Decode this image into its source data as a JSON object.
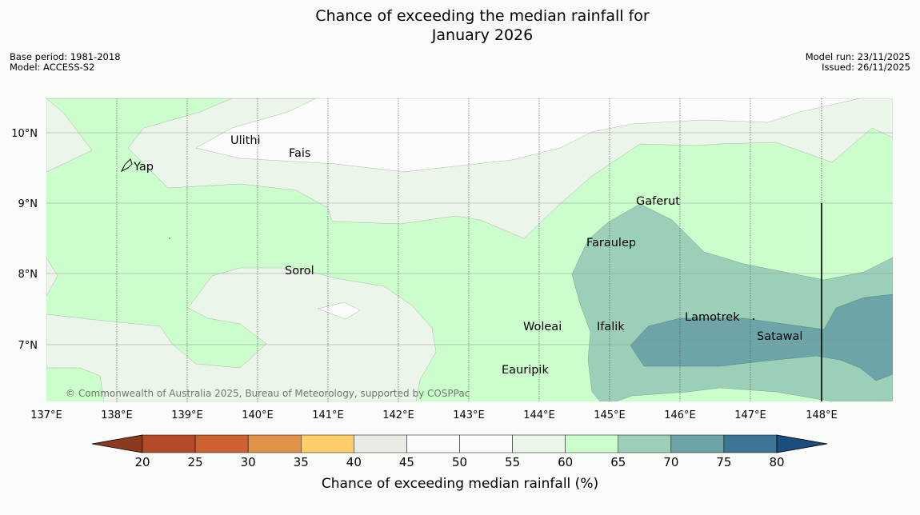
{
  "title_line1": "Chance of exceeding the median rainfall for",
  "title_line2": "January 2026",
  "base_period": "Base period: 1981-2018",
  "model": "Model: ACCESS-S2",
  "model_run": "Model run: 23/11/2025",
  "issued": "Issued: 26/11/2025",
  "copyright": "© Commonwealth of Australia 2025, Bureau of Meteorology, supported by COSPPac",
  "lon_labels": [
    "137°E",
    "138°E",
    "139°E",
    "140°E",
    "141°E",
    "142°E",
    "143°E",
    "144°E",
    "145°E",
    "146°E",
    "147°E",
    "148°E"
  ],
  "lat_labels": [
    "10°N",
    "9°N",
    "8°N",
    "7°N"
  ],
  "places": {
    "yap": "Yap",
    "ulithi": "Ulithi",
    "fais": "Fais",
    "gaferut": "Gaferut",
    "faraulep": "Faraulep",
    "sorol": "Sorol",
    "woleai": "Woleai",
    "ifalik": "Ifalik",
    "lamotrek": "Lamotrek",
    "satawal": "Satawal",
    "eauripik": "Eauripik"
  },
  "colorbar": {
    "label": "Chance of exceeding median rainfall (%)",
    "ticks": [
      "20",
      "25",
      "30",
      "35",
      "40",
      "45",
      "50",
      "55",
      "60",
      "65",
      "70",
      "75",
      "80"
    ],
    "colors": [
      "#8b3a1f",
      "#b34a28",
      "#cc6131",
      "#e0914a",
      "#fdcd6a",
      "#ebebe6",
      "#fbfcfb",
      "#fbfcfb",
      "#ecf5ea",
      "#ccfdcc",
      "#9ccfb8",
      "#6da4a7",
      "#3c7595",
      "#1b4d7e"
    ]
  }
}
